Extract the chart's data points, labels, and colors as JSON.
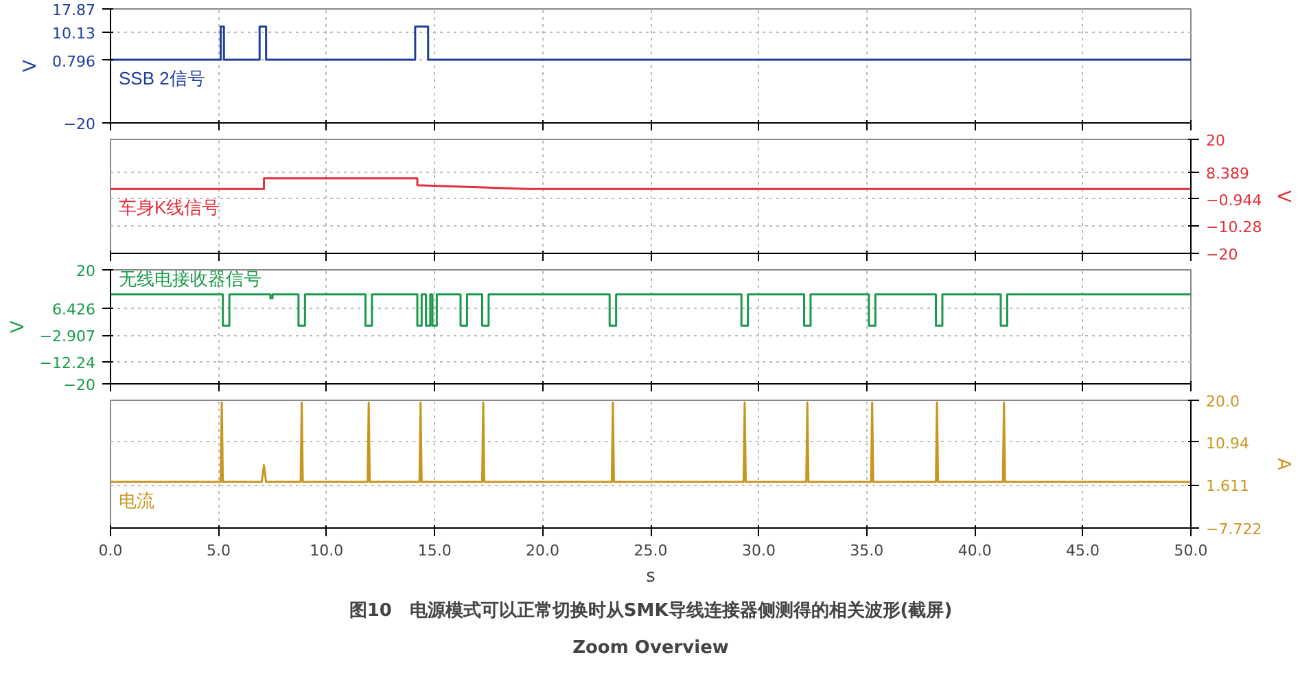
{
  "chart_data": [
    {
      "type": "line",
      "xlim": [
        0,
        50
      ],
      "xticks": [
        0,
        5,
        10,
        15,
        20,
        25,
        30,
        35,
        40,
        45,
        50
      ],
      "ylim": [
        -20,
        17.87
      ],
      "yticks": [
        17.87,
        10.13,
        0.796,
        -20
      ],
      "ylabel": "V",
      "tick_labels": "y",
      "grid": true,
      "line_style": "solid",
      "series": [
        {
          "name": "SSB 2信号",
          "color": "#1f3f99",
          "x": [
            0,
            5.1,
            5.1,
            5.25,
            5.25,
            6.9,
            6.9,
            7.2,
            7.2,
            14.1,
            14.1,
            14.7,
            14.7,
            50
          ],
          "values": [
            1,
            1,
            12,
            12,
            1,
            1,
            12,
            12,
            1,
            1,
            12,
            12,
            1,
            1
          ]
        }
      ]
    },
    {
      "type": "line",
      "xlim": [
        0,
        50
      ],
      "xticks": [
        0,
        5,
        10,
        15,
        20,
        25,
        30,
        35,
        40,
        45,
        50
      ],
      "y2lim": [
        -20,
        20
      ],
      "y2ticks": [
        20,
        8.389,
        -0.944,
        -10.28,
        -20
      ],
      "y2label": "V",
      "tick_labels": "y",
      "grid": true,
      "line_style": "solid",
      "series": [
        {
          "name": "车身K线信号",
          "color": "#e0303a",
          "axis": "y2",
          "x": [
            0,
            7.1,
            7.1,
            14.2,
            14.2,
            19.4,
            50
          ],
          "values": [
            2.6,
            2.6,
            6.3,
            6.3,
            3.9,
            2.6,
            2.6
          ]
        }
      ]
    },
    {
      "type": "line",
      "xlim": [
        0,
        50
      ],
      "xticks": [
        0,
        5,
        10,
        15,
        20,
        25,
        30,
        35,
        40,
        45,
        50
      ],
      "ylim": [
        -20,
        20
      ],
      "yticks": [
        20,
        6.426,
        -2.907,
        -12.24,
        -20
      ],
      "ylabel": "V",
      "tick_labels": "y",
      "grid": true,
      "line_style": "solid",
      "series": [
        {
          "name": "无线电接收器信号",
          "color": "#1a9a4a",
          "x": [
            0,
            5.2,
            5.2,
            5.5,
            5.5,
            7.4,
            7.4,
            7.5,
            7.5,
            8.7,
            8.7,
            9.0,
            9.0,
            11.8,
            11.8,
            12.1,
            12.1,
            14.2,
            14.2,
            14.4,
            14.4,
            14.6,
            14.6,
            14.8,
            14.8,
            14.9,
            14.9,
            15.1,
            15.1,
            16.2,
            16.2,
            16.5,
            16.5,
            17.2,
            17.2,
            17.5,
            17.5,
            23.1,
            23.1,
            23.4,
            23.4,
            29.2,
            29.2,
            29.5,
            29.5,
            32.1,
            32.1,
            32.4,
            32.4,
            35.1,
            35.1,
            35.4,
            35.4,
            38.2,
            38.2,
            38.5,
            38.5,
            41.2,
            41.2,
            41.5,
            41.5,
            50
          ],
          "values": [
            11.4,
            11.4,
            0.4,
            0.4,
            11.4,
            11.4,
            10,
            10,
            11.4,
            11.4,
            0.4,
            0.4,
            11.4,
            11.4,
            0.4,
            0.4,
            11.4,
            11.4,
            0.4,
            0.4,
            11.4,
            11.4,
            0.4,
            0.4,
            11.4,
            11.4,
            0.4,
            0.4,
            11.4,
            11.4,
            0.4,
            0.4,
            11.4,
            11.4,
            0.4,
            0.4,
            11.4,
            11.4,
            0.4,
            0.4,
            11.4,
            11.4,
            0.4,
            0.4,
            11.4,
            11.4,
            0.4,
            0.4,
            11.4,
            11.4,
            0.4,
            0.4,
            11.4,
            11.4,
            0.4,
            0.4,
            11.4,
            11.4,
            0.4,
            0.4,
            11.4,
            11.4
          ]
        }
      ]
    },
    {
      "type": "line",
      "xlim": [
        0,
        50
      ],
      "xticks": [
        {
          "value": 0,
          "label": "0.0"
        },
        {
          "value": 5,
          "label": "5.0"
        },
        {
          "value": 10,
          "label": "10.0"
        },
        {
          "value": 15,
          "label": "15.0"
        },
        {
          "value": 20,
          "label": "20.0"
        },
        {
          "value": 25,
          "label": "25.0"
        },
        {
          "value": 30,
          "label": "30.0"
        },
        {
          "value": 35,
          "label": "35.0"
        },
        {
          "value": 40,
          "label": "40.0"
        },
        {
          "value": 45,
          "label": "45.0"
        },
        {
          "value": 50,
          "label": "50.0"
        }
      ],
      "xlabel": "s",
      "y2lim": [
        -7.722,
        20
      ],
      "y2ticks": [
        {
          "value": 20,
          "label": "20.0"
        },
        10.94,
        1.611,
        -7.722
      ],
      "y2label": "A",
      "grid": true,
      "line_style": "solid",
      "annotations": [
        "Zoom Overview",
        "图10　电源模式可以正常切换时从SMK导线连接器侧测得的相关波形(截屏)"
      ],
      "series": [
        {
          "name": "电流",
          "color": "#c8961e",
          "axis": "y2",
          "x": [
            0,
            5.1,
            5.15,
            5.2,
            7.0,
            7.1,
            7.2,
            8.8,
            8.85,
            8.9,
            11.9,
            11.95,
            12.0,
            14.3,
            14.35,
            14.4,
            17.2,
            17.25,
            17.3,
            23.2,
            23.25,
            23.3,
            29.3,
            29.35,
            29.4,
            32.2,
            32.25,
            32.3,
            35.2,
            35.25,
            35.3,
            38.2,
            38.25,
            38.3,
            41.3,
            41.35,
            41.4,
            50
          ],
          "values": [
            2.3,
            2.3,
            19.5,
            2.3,
            2.3,
            5.9,
            2.3,
            2.3,
            19.5,
            2.3,
            2.3,
            19.5,
            2.3,
            2.3,
            19.5,
            2.3,
            2.3,
            19.5,
            2.3,
            2.3,
            19.5,
            2.3,
            2.3,
            19.5,
            2.3,
            2.3,
            19.5,
            2.3,
            2.3,
            19.5,
            2.3,
            2.3,
            19.5,
            2.3,
            2.3,
            19.5,
            2.3,
            2.3
          ]
        }
      ]
    }
  ]
}
